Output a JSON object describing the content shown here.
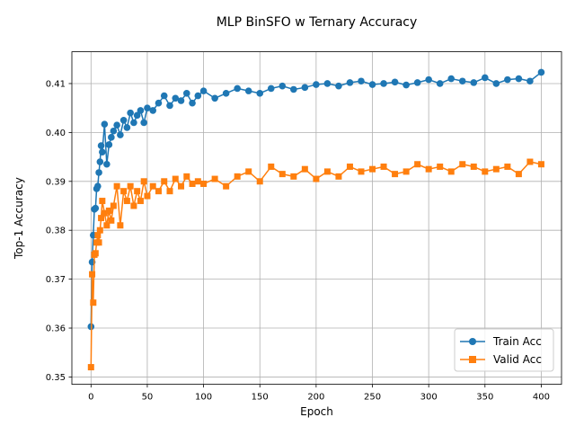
{
  "chart_data": {
    "type": "line",
    "title": "MLP BinSFO w Ternary Accuracy",
    "xlabel": "Epoch",
    "ylabel": "Top-1 Accuracy",
    "xlim": [
      -17,
      418
    ],
    "ylim": [
      0.3485,
      0.4165
    ],
    "xticks": [
      0,
      50,
      100,
      150,
      200,
      250,
      300,
      350,
      400
    ],
    "xtick_labels": [
      "0",
      "50",
      "100",
      "150",
      "200",
      "250",
      "300",
      "350",
      "400"
    ],
    "yticks": [
      0.35,
      0.36,
      0.37,
      0.38,
      0.39,
      0.4,
      0.41
    ],
    "ytick_labels": [
      "0.35",
      "0.36",
      "0.37",
      "0.38",
      "0.39",
      "0.40",
      "0.41"
    ],
    "grid": true,
    "legend_position": "lower-right",
    "series": [
      {
        "name": "Train Acc",
        "color": "#1f77b4",
        "marker": "circle",
        "x": [
          0,
          1,
          2,
          3,
          4,
          5,
          6,
          7,
          8,
          9,
          10,
          12,
          14,
          16,
          18,
          20,
          23,
          26,
          29,
          32,
          35,
          38,
          41,
          44,
          47,
          50,
          55,
          60,
          65,
          70,
          75,
          80,
          85,
          90,
          95,
          100,
          110,
          120,
          130,
          140,
          150,
          160,
          170,
          180,
          190,
          200,
          210,
          220,
          230,
          240,
          250,
          260,
          270,
          280,
          290,
          300,
          310,
          320,
          330,
          340,
          350,
          360,
          370,
          380,
          390,
          400
        ],
        "values": [
          0.3603,
          0.3735,
          0.379,
          0.3843,
          0.3845,
          0.3885,
          0.389,
          0.3918,
          0.394,
          0.3973,
          0.396,
          0.4017,
          0.3935,
          0.3975,
          0.399,
          0.4003,
          0.4015,
          0.3995,
          0.4025,
          0.401,
          0.404,
          0.402,
          0.4035,
          0.4045,
          0.402,
          0.405,
          0.4045,
          0.406,
          0.4075,
          0.4055,
          0.407,
          0.4065,
          0.408,
          0.406,
          0.4075,
          0.4085,
          0.407,
          0.408,
          0.409,
          0.4085,
          0.408,
          0.409,
          0.4095,
          0.4088,
          0.4092,
          0.4098,
          0.41,
          0.4095,
          0.4102,
          0.4105,
          0.4098,
          0.41,
          0.4103,
          0.4097,
          0.4102,
          0.4108,
          0.41,
          0.411,
          0.4105,
          0.4102,
          0.4112,
          0.41,
          0.4108,
          0.411,
          0.4105,
          0.4123
        ]
      },
      {
        "name": "Valid Acc",
        "color": "#ff7f0e",
        "marker": "square",
        "x": [
          0,
          1,
          2,
          3,
          4,
          5,
          6,
          7,
          8,
          9,
          10,
          12,
          14,
          16,
          18,
          20,
          23,
          26,
          29,
          32,
          35,
          38,
          41,
          44,
          47,
          50,
          55,
          60,
          65,
          70,
          75,
          80,
          85,
          90,
          95,
          100,
          110,
          120,
          130,
          140,
          150,
          160,
          170,
          180,
          190,
          200,
          210,
          220,
          230,
          240,
          250,
          260,
          270,
          280,
          290,
          300,
          310,
          320,
          330,
          340,
          350,
          360,
          370,
          380,
          390,
          400
        ],
        "values": [
          0.352,
          0.371,
          0.3652,
          0.375,
          0.3753,
          0.3775,
          0.379,
          0.3775,
          0.38,
          0.3825,
          0.386,
          0.3835,
          0.381,
          0.384,
          0.382,
          0.385,
          0.389,
          0.381,
          0.388,
          0.386,
          0.389,
          0.385,
          0.388,
          0.386,
          0.39,
          0.387,
          0.389,
          0.388,
          0.39,
          0.388,
          0.3905,
          0.389,
          0.391,
          0.3895,
          0.39,
          0.3895,
          0.3905,
          0.389,
          0.391,
          0.392,
          0.39,
          0.393,
          0.3915,
          0.391,
          0.3925,
          0.3905,
          0.392,
          0.391,
          0.393,
          0.392,
          0.3925,
          0.393,
          0.3915,
          0.392,
          0.3935,
          0.3925,
          0.393,
          0.392,
          0.3935,
          0.393,
          0.392,
          0.3925,
          0.393,
          0.3915,
          0.394,
          0.3935
        ]
      }
    ]
  }
}
